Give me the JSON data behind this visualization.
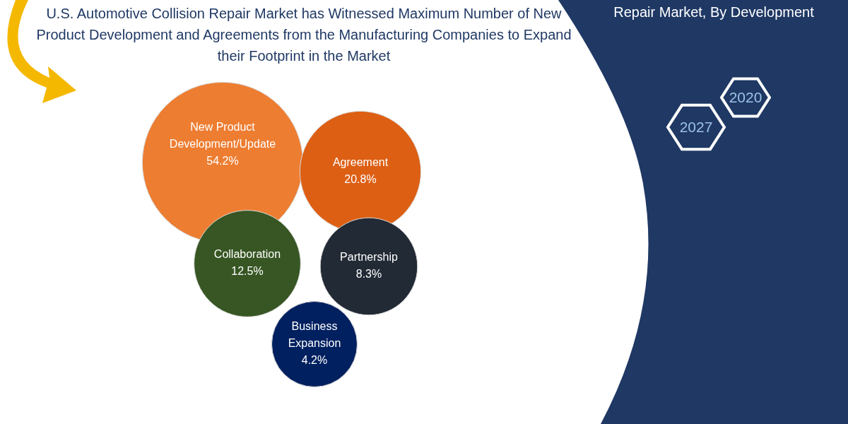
{
  "chart_data": {
    "type": "other",
    "title": "U.S. Automotive Collision Repair Market has Witnessed Maximum Number of New Product Development and Agreements from the Manufacturing Companies to Expand their Footprint in the Market",
    "subtitle": "Repair Market, By Development",
    "categories": [
      "New Product Development/Update",
      "Agreement",
      "Collaboration",
      "Partnership",
      "Business Expansion"
    ],
    "values": [
      54.2,
      20.8,
      12.5,
      8.3,
      4.2
    ],
    "value_labels": [
      "54.2%",
      "20.8%",
      "12.5%",
      "8.3%",
      "4.2%"
    ],
    "colors": [
      "#ed7d31",
      "#dd5f13",
      "#375623",
      "#222a35",
      "#002060"
    ],
    "annotations": [
      "2020",
      "2027"
    ]
  }
}
